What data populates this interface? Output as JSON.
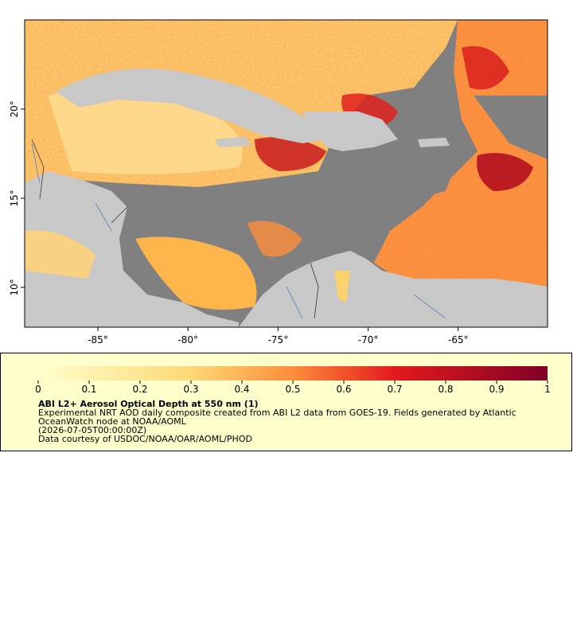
{
  "map": {
    "x_labels": [
      "-85°",
      "-80°",
      "-75°",
      "-70°",
      "-65°"
    ],
    "y_labels": [
      "20°",
      "15°",
      "10°"
    ]
  },
  "legend": {
    "scale_labels": [
      "0",
      "0.1",
      "0.2",
      "0.3",
      "0.4",
      "0.5",
      "0.6",
      "0.7",
      "0.8",
      "0.9",
      "1"
    ],
    "title": "ABI L2+ Aerosol Optical Depth at 550 nm (1)",
    "lines": [
      "Experimental NRT AOD daily composite created from ABI L2 data from GOES-19. Fields generated by Atlantic",
      "OceanWatch node at NOAA/AOML",
      "(2026-07-05T00:00:00Z)",
      "Data courtesy of USDOC/NOAA/OAR/AOML/PHOD"
    ]
  }
}
